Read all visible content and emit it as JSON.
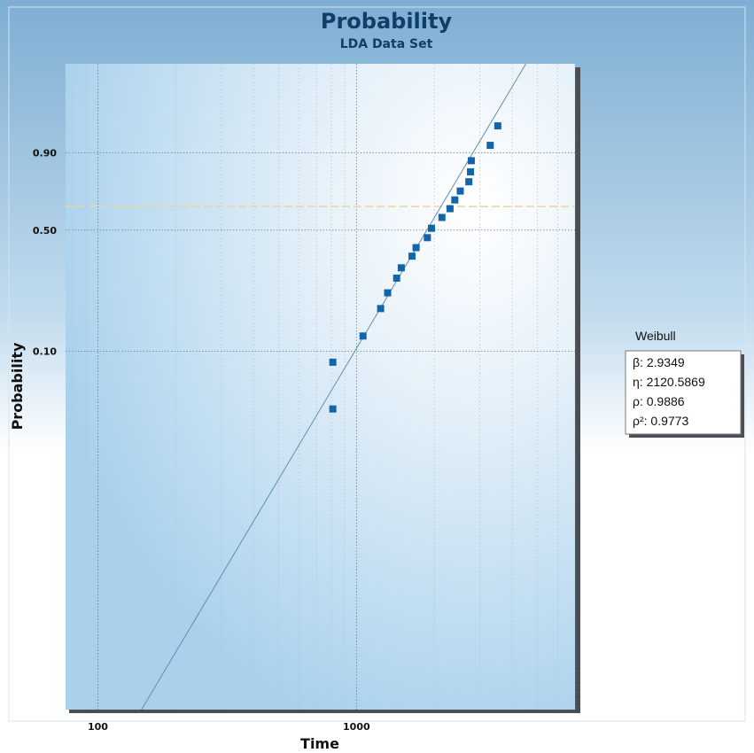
{
  "chart_data": {
    "type": "scatter",
    "title": "Probability",
    "subtitle": "LDA Data Set",
    "xlabel": "Time",
    "ylabel": "Probability",
    "x_scale": "log",
    "y_scale": "weibull",
    "xlim": [
      75,
      7000
    ],
    "ylim": [
      0.0004,
      0.9999
    ],
    "x_ticks": [
      100,
      1000
    ],
    "x_tick_labels": [
      "100",
      "1000"
    ],
    "y_ticks": [
      0.1,
      0.5,
      0.9
    ],
    "y_tick_labels": [
      "0.10",
      "0.50",
      "0.90"
    ],
    "reference_line_y": 0.632,
    "grid": true,
    "series": [
      {
        "type": "scatter",
        "marker": "square",
        "points": [
          [
            810,
            0.042
          ],
          [
            810,
            0.085
          ],
          [
            1060,
            0.125
          ],
          [
            1240,
            0.185
          ],
          [
            1320,
            0.23
          ],
          [
            1430,
            0.28
          ],
          [
            1490,
            0.32
          ],
          [
            1640,
            0.37
          ],
          [
            1700,
            0.41
          ],
          [
            1880,
            0.46
          ],
          [
            1950,
            0.51
          ],
          [
            2140,
            0.57
          ],
          [
            2300,
            0.62
          ],
          [
            2400,
            0.67
          ],
          [
            2520,
            0.72
          ],
          [
            2720,
            0.77
          ],
          [
            2760,
            0.82
          ],
          [
            2780,
            0.87
          ],
          [
            3290,
            0.925
          ],
          [
            3520,
            0.97
          ]
        ]
      },
      {
        "type": "fit_line",
        "beta": 2.9349,
        "eta": 2120.5869
      }
    ],
    "legend": {
      "title": "Weibull",
      "lines": [
        "β: 2.9349",
        "η: 2120.5869",
        "ρ: 0.9886",
        "ρ²: 0.9773"
      ],
      "position": "right"
    },
    "colors": {
      "point": "#1464a8",
      "fit_line": "#5f8fb0",
      "reference_line": "#ecd49a",
      "title": "#0f3e66"
    }
  }
}
